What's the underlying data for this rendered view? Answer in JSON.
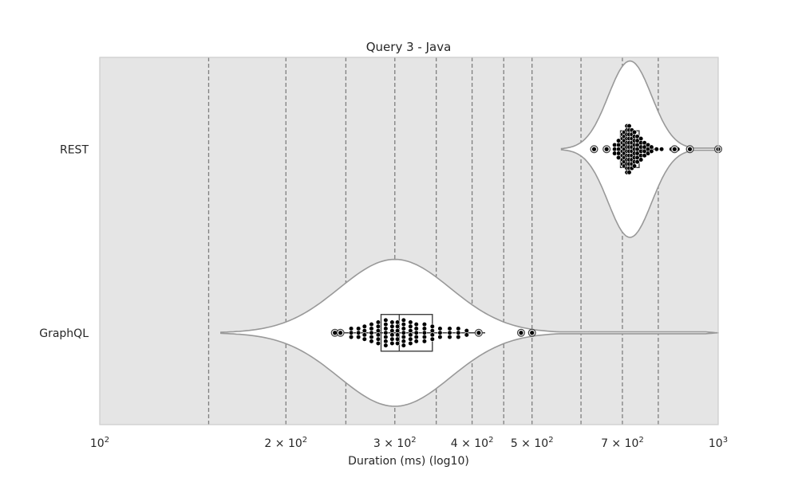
{
  "chart_data": {
    "type": "violin",
    "title": "Query 3 - Java",
    "xlabel": "Duration (ms) (log10)",
    "ylabel": "",
    "x_scale": "log10",
    "xlim": [
      100,
      1000
    ],
    "x_ticks": [
      {
        "value": 100,
        "base": "10",
        "exp": "2",
        "coef": ""
      },
      {
        "value": 200,
        "base": "10",
        "exp": "2",
        "coef": "2 × "
      },
      {
        "value": 300,
        "base": "10",
        "exp": "2",
        "coef": "3 × "
      },
      {
        "value": 400,
        "base": "10",
        "exp": "2",
        "coef": "4 × "
      },
      {
        "value": 500,
        "base": "10",
        "exp": "2",
        "coef": "5 × "
      },
      {
        "value": 700,
        "base": "10",
        "exp": "2",
        "coef": "7 × "
      },
      {
        "value": 1000,
        "base": "10",
        "exp": "3",
        "coef": ""
      }
    ],
    "vertical_dashed_lines": [
      150,
      200,
      250,
      300,
      350,
      400,
      450,
      500,
      600,
      700,
      800
    ],
    "background": "#e5e5e5",
    "violin_color": "#ffffff",
    "outline_color": "#999999",
    "point_color": "#000000",
    "categories": [
      "REST",
      "GraphQL"
    ],
    "series": [
      {
        "category": "REST",
        "kde_min": 558,
        "kde_max": 1000,
        "peak": 720,
        "width_scale": 0.48,
        "log_sigma": 0.035,
        "box": {
          "q1": 695,
          "median": 715,
          "q3": 745
        },
        "whiskers": [
          680,
          790
        ],
        "outliers": [
          630,
          660,
          850,
          900,
          1000
        ],
        "points": [
          {
            "x": 680,
            "n": 3
          },
          {
            "x": 690,
            "n": 5
          },
          {
            "x": 700,
            "n": 8
          },
          {
            "x": 705,
            "n": 9
          },
          {
            "x": 712,
            "n": 12
          },
          {
            "x": 718,
            "n": 12
          },
          {
            "x": 725,
            "n": 10
          },
          {
            "x": 732,
            "n": 9
          },
          {
            "x": 740,
            "n": 7
          },
          {
            "x": 750,
            "n": 6
          },
          {
            "x": 760,
            "n": 4
          },
          {
            "x": 770,
            "n": 3
          },
          {
            "x": 780,
            "n": 2
          },
          {
            "x": 795,
            "n": 1
          },
          {
            "x": 810,
            "n": 1
          },
          {
            "x": 840,
            "n": 1
          },
          {
            "x": 860,
            "n": 1
          }
        ]
      },
      {
        "category": "GraphQL",
        "kde_min": 157,
        "kde_max": 1000,
        "peak": 300,
        "width_scale": 0.4,
        "log_sigma": 0.09,
        "box": {
          "q1": 285,
          "median": 305,
          "q3": 345
        },
        "whiskers": [
          245,
          420
        ],
        "outliers": [
          240,
          245,
          410,
          480,
          500
        ],
        "points": [
          {
            "x": 255,
            "n": 3
          },
          {
            "x": 262,
            "n": 3
          },
          {
            "x": 268,
            "n": 4
          },
          {
            "x": 275,
            "n": 5
          },
          {
            "x": 282,
            "n": 6
          },
          {
            "x": 290,
            "n": 7
          },
          {
            "x": 297,
            "n": 6
          },
          {
            "x": 303,
            "n": 6
          },
          {
            "x": 310,
            "n": 7
          },
          {
            "x": 318,
            "n": 6
          },
          {
            "x": 325,
            "n": 5
          },
          {
            "x": 335,
            "n": 5
          },
          {
            "x": 345,
            "n": 4
          },
          {
            "x": 355,
            "n": 3
          },
          {
            "x": 368,
            "n": 3
          },
          {
            "x": 380,
            "n": 3
          },
          {
            "x": 392,
            "n": 2
          }
        ]
      }
    ]
  }
}
